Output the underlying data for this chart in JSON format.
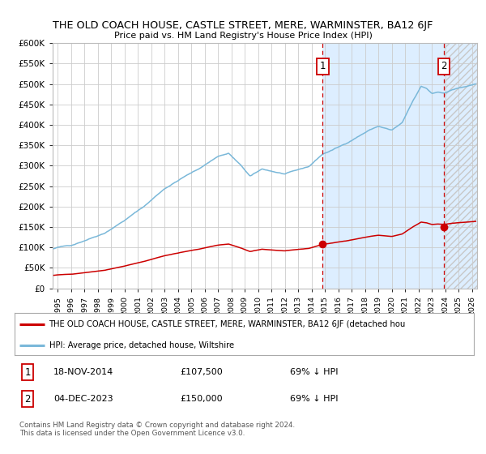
{
  "title": "THE OLD COACH HOUSE, CASTLE STREET, MERE, WARMINSTER, BA12 6JF",
  "subtitle": "Price paid vs. HM Land Registry's House Price Index (HPI)",
  "sale1_date": "18-NOV-2014",
  "sale1_price": 107500,
  "sale2_date": "04-DEC-2023",
  "sale2_price": 150000,
  "sale1_pct": "69% ↓ HPI",
  "sale2_pct": "69% ↓ HPI",
  "legend_line1": "THE OLD COACH HOUSE, CASTLE STREET, MERE, WARMINSTER, BA12 6JF (detached hou",
  "legend_line2": "HPI: Average price, detached house, Wiltshire",
  "footer": "Contains HM Land Registry data © Crown copyright and database right 2024.\nThis data is licensed under the Open Government Licence v3.0.",
  "hpi_color": "#7ab8d9",
  "price_color": "#cc0000",
  "highlight_color": "#ddeeff",
  "vline_color": "#cc0000",
  "ylim_max": 600000,
  "ylim_min": 0,
  "xmin": 1994.6,
  "xmax": 2026.4
}
